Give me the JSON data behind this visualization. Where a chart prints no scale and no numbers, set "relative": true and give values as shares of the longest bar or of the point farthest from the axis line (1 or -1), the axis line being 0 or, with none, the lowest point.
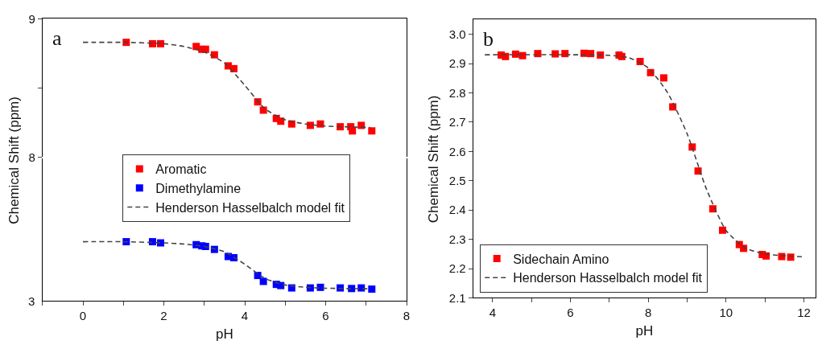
{
  "chart_data": [
    {
      "type": "scatter",
      "annotations": [
        "a"
      ],
      "ylabel": "Chemical Shift (ppm)",
      "xlim": [
        -1,
        8
      ],
      "ylim": [
        8,
        9
      ],
      "yticks": [
        8,
        {
          "value": 8.5,
          "label": null
        },
        9
      ],
      "tick_labels": "y",
      "legend": "bottom",
      "series": [
        {
          "name": "Aromatic",
          "color": "#ff0000",
          "marker": "square",
          "x": [
            1.07,
            1.72,
            1.92,
            2.8,
            2.94,
            3.03,
            3.25,
            3.59,
            3.73,
            4.32,
            4.46,
            4.78,
            4.89,
            5.16,
            5.62,
            5.87,
            6.36,
            6.62,
            6.66,
            6.88,
            7.14
          ],
          "values": [
            8.83,
            8.82,
            8.82,
            8.8,
            8.78,
            8.78,
            8.74,
            8.66,
            8.64,
            8.4,
            8.34,
            8.28,
            8.26,
            8.24,
            8.23,
            8.24,
            8.22,
            8.22,
            8.19,
            8.23,
            8.19
          ]
        },
        {
          "name": "Henderson Hasselbalch model fit",
          "type": "line",
          "line_style": "dashed",
          "marker": "none",
          "color": "#444444",
          "x": [
            0,
            1,
            2,
            2.5,
            3,
            3.5,
            4,
            4.5,
            5,
            5.5,
            6,
            7.1
          ],
          "values": [
            8.83,
            8.83,
            8.82,
            8.8,
            8.76,
            8.68,
            8.52,
            8.35,
            8.27,
            8.24,
            8.225,
            8.215
          ]
        }
      ]
    },
    {
      "type": "scatter",
      "relative": true,
      "annotations": [
        "3"
      ],
      "xlabel": "pH",
      "xlim": [
        -1,
        8
      ],
      "xticks": [
        {
          "value": -1,
          "label": null
        },
        0,
        {
          "value": 1,
          "label": null
        },
        2,
        {
          "value": 3,
          "label": null
        },
        4,
        {
          "value": 5,
          "label": null
        },
        6,
        {
          "value": 7,
          "label": null
        },
        8
      ],
      "series": [
        {
          "name": "Dimethylamine",
          "color": "#0000ff",
          "marker": "square",
          "x": [
            1.07,
            1.72,
            1.92,
            2.8,
            2.94,
            3.03,
            3.25,
            3.59,
            3.73,
            4.32,
            4.46,
            4.78,
            4.89,
            5.16,
            5.62,
            5.87,
            6.36,
            6.64,
            6.88,
            7.14
          ],
          "values": [
            1,
            1,
            0.98,
            0.95,
            0.93,
            0.92,
            0.87,
            0.75,
            0.73,
            0.43,
            0.33,
            0.28,
            0.26,
            0.22,
            0.22,
            0.23,
            0.22,
            0.21,
            0.22,
            0.2
          ]
        },
        {
          "type": "line",
          "line_style": "dashed",
          "marker": "none",
          "color": "#444444",
          "x": [
            0,
            1,
            2,
            2.5,
            3,
            3.5,
            4,
            4.5,
            5,
            5.5,
            6,
            7.1
          ],
          "values": [
            1,
            1,
            0.98,
            0.96,
            0.92,
            0.83,
            0.62,
            0.38,
            0.27,
            0.23,
            0.215,
            0.205
          ]
        }
      ]
    },
    {
      "type": "scatter",
      "annotations": [
        "b"
      ],
      "xlabel": "pH",
      "ylabel": "Chemical Shift (ppm)",
      "xlim": [
        3.5,
        12.3
      ],
      "ylim": [
        2.1,
        3.05
      ],
      "xticks": [
        4,
        {
          "value": 5,
          "label": null
        },
        6,
        {
          "value": 7,
          "label": null
        },
        8,
        {
          "value": 9,
          "label": null
        },
        10,
        {
          "value": 11,
          "label": null
        },
        12
      ],
      "yticks": [
        2.1,
        2.2,
        2.3,
        2.4,
        2.5,
        2.6,
        2.7,
        2.8,
        2.9,
        {
          "value": 3.0,
          "label": "3.0"
        }
      ],
      "legend": "bottom left",
      "series": [
        {
          "name": "Sidechain Amino",
          "color": "#ff0000",
          "marker": "square",
          "x": [
            4.22,
            4.33,
            4.59,
            4.77,
            5.16,
            5.61,
            5.86,
            6.35,
            6.52,
            6.77,
            7.25,
            7.32,
            7.79,
            8.06,
            8.4,
            8.63,
            9.13,
            9.28,
            9.66,
            9.91,
            10.34,
            10.45,
            10.93,
            11.03,
            11.43,
            11.66
          ],
          "values": [
            2.929,
            2.924,
            2.932,
            2.927,
            2.934,
            2.933,
            2.934,
            2.935,
            2.934,
            2.929,
            2.929,
            2.924,
            2.907,
            2.869,
            2.851,
            2.752,
            2.615,
            2.533,
            2.404,
            2.331,
            2.282,
            2.269,
            2.248,
            2.243,
            2.241,
            2.239
          ]
        },
        {
          "name": "Henderson Hasselbalch model fit",
          "type": "line",
          "line_style": "dashed",
          "marker": "none",
          "color": "#444444",
          "x": [
            3.8,
            6,
            7,
            7.5,
            8,
            8.5,
            9,
            9.5,
            10,
            10.5,
            11,
            12
          ],
          "values": [
            2.93,
            2.93,
            2.928,
            2.92,
            2.885,
            2.8,
            2.66,
            2.47,
            2.33,
            2.27,
            2.25,
            2.24
          ]
        }
      ]
    }
  ]
}
